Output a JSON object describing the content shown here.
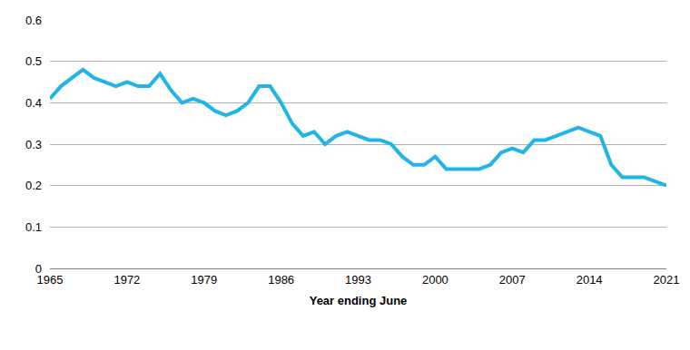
{
  "chart_data": {
    "type": "line",
    "x_label": "Year ending June",
    "x": [
      1965,
      1966,
      1967,
      1968,
      1969,
      1970,
      1971,
      1972,
      1973,
      1974,
      1975,
      1976,
      1977,
      1978,
      1979,
      1980,
      1981,
      1982,
      1983,
      1984,
      1985,
      1986,
      1987,
      1988,
      1989,
      1990,
      1991,
      1992,
      1993,
      1994,
      1995,
      1996,
      1997,
      1998,
      1999,
      2000,
      2001,
      2002,
      2003,
      2004,
      2005,
      2006,
      2007,
      2008,
      2009,
      2010,
      2011,
      2012,
      2013,
      2014,
      2015,
      2016,
      2017,
      2018,
      2019,
      2020,
      2021
    ],
    "values": [
      0.41,
      0.44,
      0.46,
      0.48,
      0.46,
      0.45,
      0.44,
      0.45,
      0.44,
      0.44,
      0.47,
      0.43,
      0.4,
      0.41,
      0.4,
      0.38,
      0.37,
      0.38,
      0.4,
      0.44,
      0.44,
      0.4,
      0.35,
      0.32,
      0.33,
      0.3,
      0.32,
      0.33,
      0.32,
      0.31,
      0.31,
      0.3,
      0.27,
      0.25,
      0.25,
      0.27,
      0.24,
      0.24,
      0.24,
      0.24,
      0.25,
      0.28,
      0.29,
      0.28,
      0.31,
      0.31,
      0.32,
      0.33,
      0.34,
      0.33,
      0.32,
      0.25,
      0.22,
      0.22,
      0.22,
      0.21,
      0.2
    ],
    "color": "#20b4e8",
    "xlim": [
      1965,
      2021
    ],
    "xticks": [
      1965,
      1972,
      1979,
      1986,
      1993,
      2000,
      2007,
      2014,
      2021
    ],
    "ylim": [
      0,
      0.6
    ],
    "yticks": [
      0,
      0.1,
      0.2,
      0.3,
      0.4,
      0.5,
      0.6
    ],
    "grid": true
  }
}
